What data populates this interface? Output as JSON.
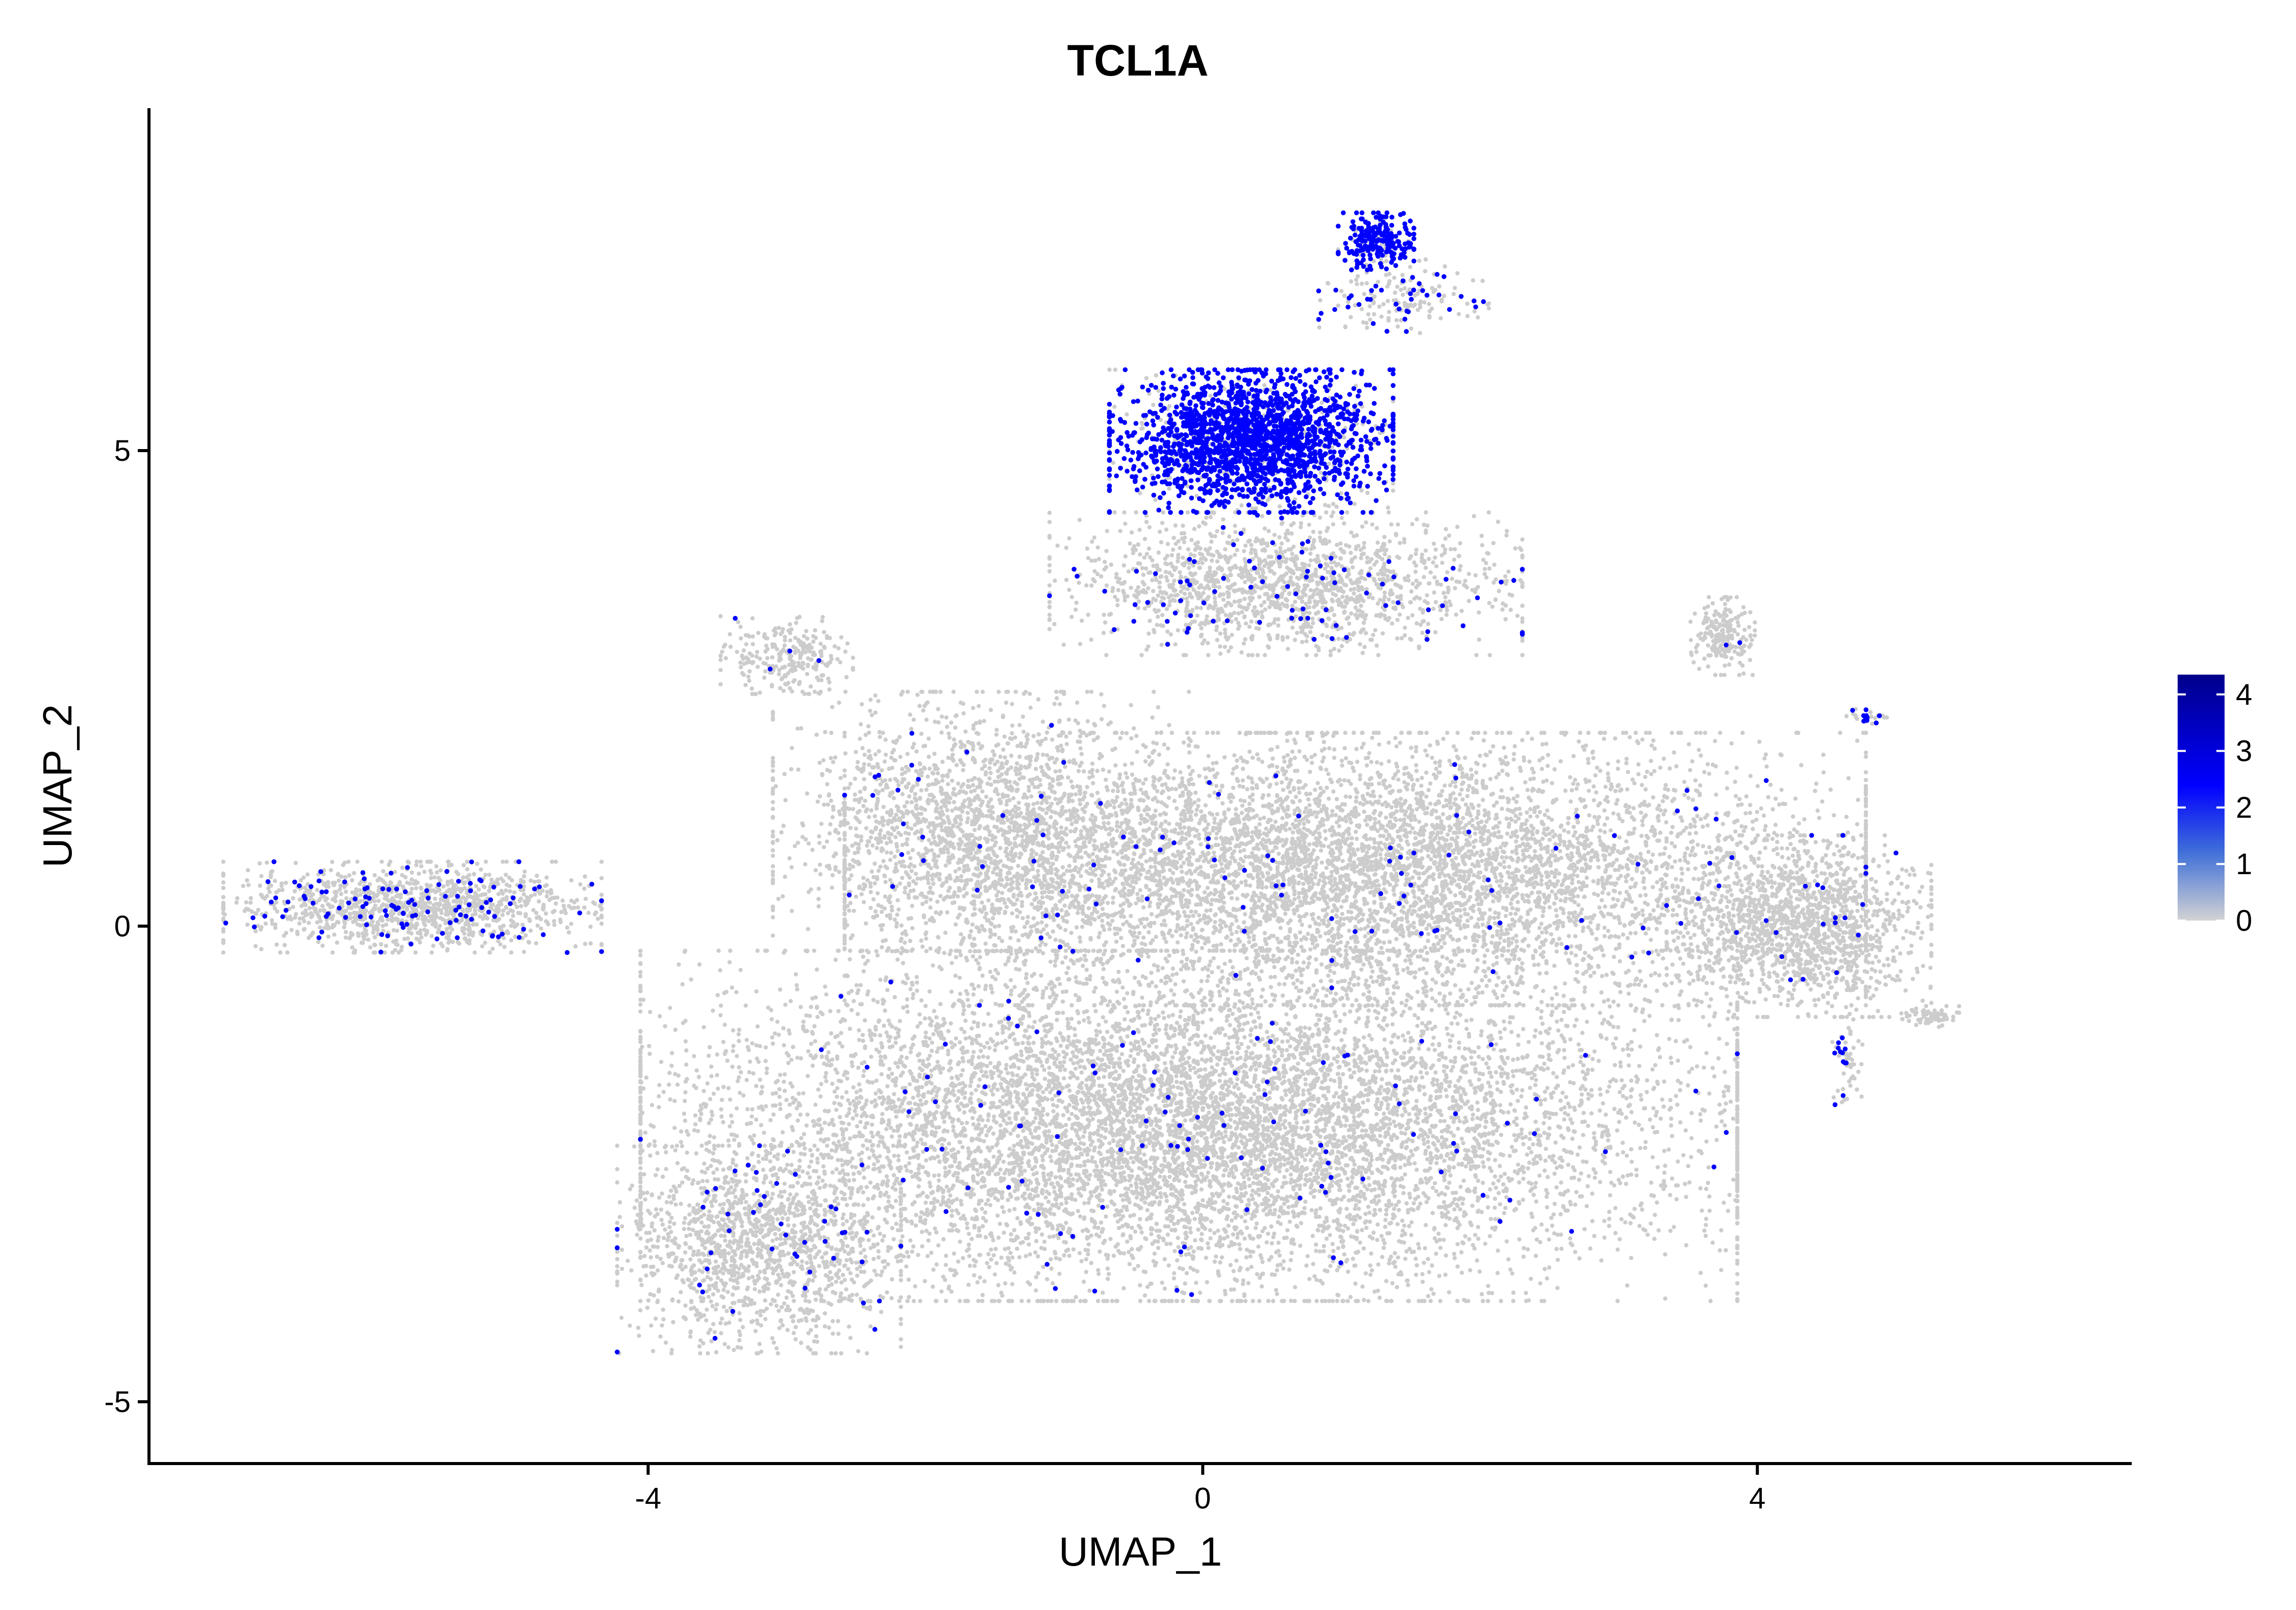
{
  "chart_data": {
    "type": "scatter",
    "title": "TCL1A",
    "xlabel": "UMAP_1",
    "ylabel": "UMAP_2",
    "xlim": [
      -7.6,
      6.7
    ],
    "ylim": [
      -5.65,
      8.6
    ],
    "x_ticks": [
      {
        "value": -4,
        "label": "-4"
      },
      {
        "value": 0,
        "label": "0"
      },
      {
        "value": 4,
        "label": "4"
      }
    ],
    "y_ticks": [
      {
        "value": -5,
        "label": "-5"
      },
      {
        "value": 0,
        "label": "0"
      },
      {
        "value": 5,
        "label": "5"
      }
    ],
    "grid": false,
    "legend": {
      "type": "colorbar",
      "placement": "right",
      "range": [
        0,
        4.35
      ],
      "ticks": [
        {
          "value": 0,
          "label": "0"
        },
        {
          "value": 1,
          "label": "1"
        },
        {
          "value": 2,
          "label": "2"
        },
        {
          "value": 3,
          "label": "3"
        },
        {
          "value": 4,
          "label": "4"
        }
      ],
      "colors": [
        "#d3d3d3",
        "#3f6fd8",
        "#0000ff",
        "#00008b"
      ]
    },
    "point_color_low": "#cccccc",
    "point_color_high": "#0000ff",
    "clusters": [
      {
        "name": "main body lower",
        "cx": -0.1,
        "cy": -2.1,
        "sx": 2.9,
        "sy": 1.35,
        "n": 9000,
        "expr_frac": 0.012
      },
      {
        "name": "main body upper",
        "cx": 1.1,
        "cy": 0.6,
        "sx": 2.7,
        "sy": 1.05,
        "n": 6500,
        "expr_frac": 0.012
      },
      {
        "name": "upper-left lobe",
        "cx": -1.6,
        "cy": 1.1,
        "sx": 1.1,
        "sy": 1.0,
        "n": 1800,
        "expr_frac": 0.012
      },
      {
        "name": "bottom-left wing",
        "cx": -3.2,
        "cy": -3.4,
        "sx": 0.75,
        "sy": 0.8,
        "n": 1300,
        "expr_frac": 0.03
      },
      {
        "name": "right lobe",
        "cx": 4.3,
        "cy": 0.0,
        "sx": 0.7,
        "sy": 0.7,
        "n": 1400,
        "expr_frac": 0.012
      },
      {
        "name": "right tip",
        "cx": 5.25,
        "cy": -0.95,
        "sx": 0.15,
        "sy": 0.08,
        "n": 70,
        "expr_frac": 0.0
      },
      {
        "name": "bridge to top",
        "cx": 0.6,
        "cy": 3.6,
        "sx": 1.25,
        "sy": 0.55,
        "n": 1600,
        "expr_frac": 0.06
      },
      {
        "name": "high-expression cluster",
        "cx": 0.35,
        "cy": 5.1,
        "sx": 0.75,
        "sy": 0.55,
        "n": 2200,
        "expr_frac": 0.82
      },
      {
        "name": "high-expression tip",
        "cx": 1.25,
        "cy": 7.2,
        "sx": 0.2,
        "sy": 0.22,
        "n": 260,
        "expr_frac": 0.78
      },
      {
        "name": "upper-right trail",
        "cx": 1.45,
        "cy": 6.6,
        "sx": 0.45,
        "sy": 0.3,
        "n": 160,
        "expr_frac": 0.2
      },
      {
        "name": "left island",
        "cx": -5.7,
        "cy": 0.2,
        "sx": 1.0,
        "sy": 0.35,
        "n": 1300,
        "expr_frac": 0.09
      },
      {
        "name": "small left blob",
        "cx": -3.0,
        "cy": 2.85,
        "sx": 0.35,
        "sy": 0.3,
        "n": 260,
        "expr_frac": 0.02
      },
      {
        "name": "small right blob",
        "cx": 3.75,
        "cy": 3.05,
        "sx": 0.17,
        "sy": 0.3,
        "n": 200,
        "expr_frac": 0.01
      },
      {
        "name": "right small streak",
        "cx": 4.8,
        "cy": 2.2,
        "sx": 0.12,
        "sy": 0.06,
        "n": 30,
        "expr_frac": 0.3
      },
      {
        "name": "right lower streak",
        "cx": 4.65,
        "cy": -1.4,
        "sx": 0.08,
        "sy": 0.35,
        "n": 55,
        "expr_frac": 0.2
      }
    ]
  }
}
